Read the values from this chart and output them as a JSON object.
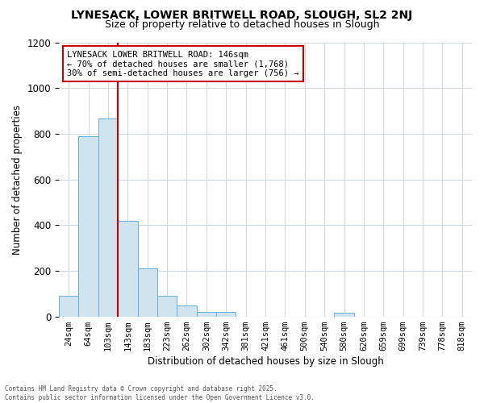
{
  "title1": "LYNESACK, LOWER BRITWELL ROAD, SLOUGH, SL2 2NJ",
  "title2": "Size of property relative to detached houses in Slough",
  "xlabel": "Distribution of detached houses by size in Slough",
  "ylabel": "Number of detached properties",
  "bins": [
    "24sqm",
    "64sqm",
    "103sqm",
    "143sqm",
    "183sqm",
    "223sqm",
    "262sqm",
    "302sqm",
    "342sqm",
    "381sqm",
    "421sqm",
    "461sqm",
    "500sqm",
    "540sqm",
    "580sqm",
    "620sqm",
    "659sqm",
    "699sqm",
    "739sqm",
    "778sqm",
    "818sqm"
  ],
  "bar_heights": [
    90,
    790,
    865,
    420,
    210,
    90,
    50,
    20,
    20,
    0,
    0,
    0,
    0,
    0,
    15,
    0,
    0,
    0,
    0,
    0,
    0
  ],
  "bar_color": "#d0e4f0",
  "bar_edge_color": "#6aaed6",
  "vline_index": 3,
  "vline_color": "#cc0000",
  "annotation_line1": "LYNESACK LOWER BRITWELL ROAD: 146sqm",
  "annotation_line2": "← 70% of detached houses are smaller (1,768)",
  "annotation_line3": "30% of semi-detached houses are larger (756) →",
  "annotation_box_edgecolor": "#cc0000",
  "ylim": [
    0,
    1200
  ],
  "yticks": [
    0,
    200,
    400,
    600,
    800,
    1000,
    1200
  ],
  "background_color": "#ffffff",
  "plot_bg_color": "#ffffff",
  "grid_color": "#d0d8e0",
  "footer1": "Contains HM Land Registry data © Crown copyright and database right 2025.",
  "footer2": "Contains public sector information licensed under the Open Government Licence v3.0."
}
